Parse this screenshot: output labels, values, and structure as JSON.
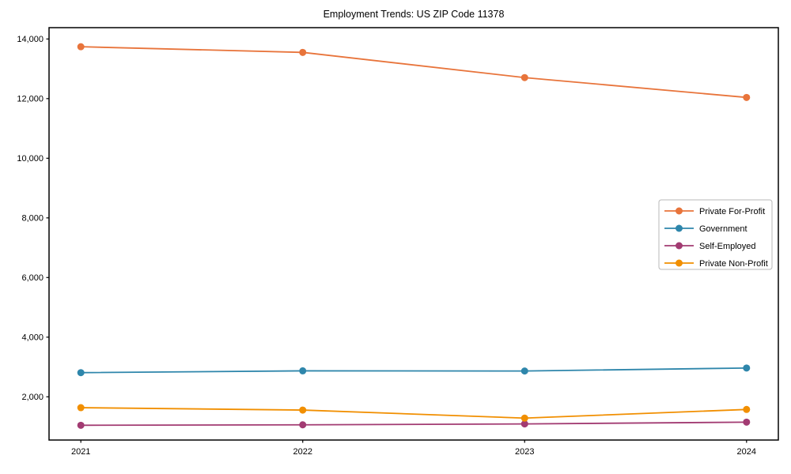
{
  "page": {
    "background": "#ffffff",
    "axis_color": "#000000"
  },
  "chart_data": {
    "type": "line",
    "title": "Employment Trends: US ZIP Code 11378",
    "x": [
      2021,
      2022,
      2023,
      2024
    ],
    "x_tick_labels": [
      "2021",
      "2022",
      "2023",
      "2024"
    ],
    "series": [
      {
        "name": "Private For-Profit",
        "color": "#E8743B",
        "values": [
          13740,
          13550,
          12705,
          12040
        ]
      },
      {
        "name": "Government",
        "color": "#2E86AB",
        "values": [
          2810,
          2870,
          2865,
          2965
        ]
      },
      {
        "name": "Self-Employed",
        "color": "#A23B72",
        "values": [
          1045,
          1060,
          1090,
          1150
        ]
      },
      {
        "name": "Private Non-Profit",
        "color": "#F18F01",
        "values": [
          1635,
          1555,
          1285,
          1575
        ]
      }
    ],
    "ylim": [
      550,
      14380
    ],
    "yticks": [
      2000,
      4000,
      6000,
      8000,
      10000,
      12000,
      14000
    ],
    "ytick_labels": [
      "2,000",
      "4,000",
      "6,000",
      "8,000",
      "10,000",
      "12,000",
      "14,000"
    ],
    "legend_position": "center right",
    "grid": false,
    "marker": "circle"
  }
}
